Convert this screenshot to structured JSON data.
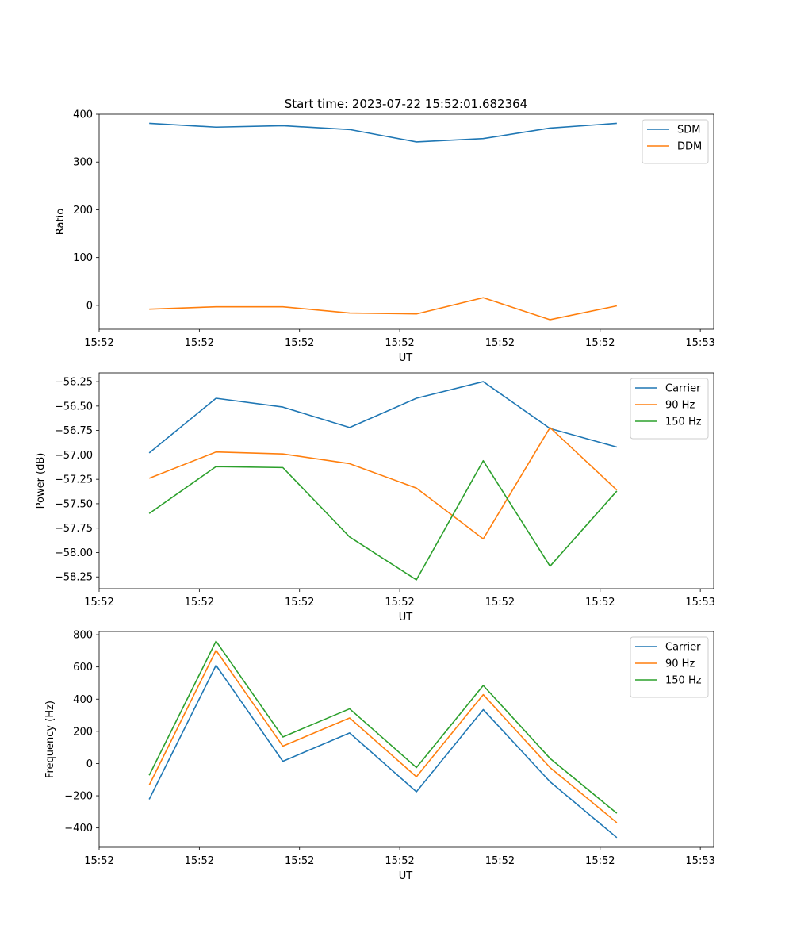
{
  "chart_data": [
    {
      "type": "line",
      "title": "Start time: 2023-07-22 15:52:01.682364",
      "xlabel": "UT",
      "ylabel": "Ratio",
      "x": [
        0,
        1,
        2,
        3,
        4,
        5,
        6,
        7
      ],
      "xlim": [
        -0.75,
        8.45
      ],
      "xticks": [
        -0.75,
        0.75,
        2.25,
        3.75,
        5.25,
        6.75,
        8.25
      ],
      "xtick_labels": [
        "15:52",
        "15:52",
        "15:52",
        "15:52",
        "15:52",
        "15:52",
        "15:53"
      ],
      "ylim": [
        -50,
        400
      ],
      "yticks": [
        0,
        100,
        200,
        300,
        400
      ],
      "ytick_labels": [
        "0",
        "100",
        "200",
        "300",
        "400"
      ],
      "legend_position": "top-right",
      "series": [
        {
          "name": "SDM",
          "color": "#1f77b4",
          "values": [
            381,
            373,
            376,
            368,
            342,
            349,
            371,
            381
          ]
        },
        {
          "name": "DDM",
          "color": "#ff7f0e",
          "values": [
            -8,
            -3,
            -3,
            -16,
            -18,
            16,
            -30,
            -1
          ]
        }
      ]
    },
    {
      "type": "line",
      "title": "",
      "xlabel": "UT",
      "ylabel": "Power (dB)",
      "x": [
        0,
        1,
        2,
        3,
        4,
        5,
        6,
        7
      ],
      "xlim": [
        -0.75,
        8.45
      ],
      "xticks": [
        -0.75,
        0.75,
        2.25,
        3.75,
        5.25,
        6.75,
        8.25
      ],
      "xtick_labels": [
        "15:52",
        "15:52",
        "15:52",
        "15:52",
        "15:52",
        "15:52",
        "15:53"
      ],
      "ylim": [
        -58.37,
        -56.16
      ],
      "yticks": [
        -56.25,
        -56.5,
        -56.75,
        -57.0,
        -57.25,
        -57.5,
        -57.75,
        -58.0,
        -58.25
      ],
      "ytick_labels": [
        "−56.25",
        "−56.50",
        "−56.75",
        "−57.00",
        "−57.25",
        "−57.50",
        "−57.75",
        "−58.00",
        "−58.25"
      ],
      "legend_position": "top-right",
      "series": [
        {
          "name": "Carrier",
          "color": "#1f77b4",
          "values": [
            -56.98,
            -56.42,
            -56.51,
            -56.72,
            -56.42,
            -56.25,
            -56.73,
            -56.92
          ]
        },
        {
          "name": "90 Hz",
          "color": "#ff7f0e",
          "values": [
            -57.24,
            -56.97,
            -56.99,
            -57.09,
            -57.34,
            -57.86,
            -56.72,
            -57.36
          ]
        },
        {
          "name": "150 Hz",
          "color": "#2ca02c",
          "values": [
            -57.6,
            -57.12,
            -57.13,
            -57.84,
            -58.28,
            -57.06,
            -58.14,
            -57.37
          ]
        }
      ]
    },
    {
      "type": "line",
      "title": "",
      "xlabel": "UT",
      "ylabel": "Frequency (Hz)",
      "x": [
        0,
        1,
        2,
        3,
        4,
        5,
        6,
        7
      ],
      "xlim": [
        -0.75,
        8.45
      ],
      "xticks": [
        -0.75,
        0.75,
        2.25,
        3.75,
        5.25,
        6.75,
        8.25
      ],
      "xtick_labels": [
        "15:52",
        "15:52",
        "15:52",
        "15:52",
        "15:52",
        "15:52",
        "15:53"
      ],
      "ylim": [
        -520,
        820
      ],
      "yticks": [
        800,
        600,
        400,
        200,
        0,
        -200,
        -400
      ],
      "ytick_labels": [
        "800",
        "600",
        "400",
        "200",
        "0",
        "−200",
        "−400"
      ],
      "legend_position": "top-right",
      "series": [
        {
          "name": "Carrier",
          "color": "#1f77b4",
          "values": [
            -222,
            610,
            14,
            190,
            -175,
            335,
            -113,
            -460
          ]
        },
        {
          "name": "90 Hz",
          "color": "#ff7f0e",
          "values": [
            -134,
            703,
            108,
            283,
            -82,
            428,
            -25,
            -367
          ]
        },
        {
          "name": "150 Hz",
          "color": "#2ca02c",
          "values": [
            -73,
            760,
            165,
            340,
            -25,
            485,
            32,
            -309
          ]
        }
      ]
    }
  ]
}
